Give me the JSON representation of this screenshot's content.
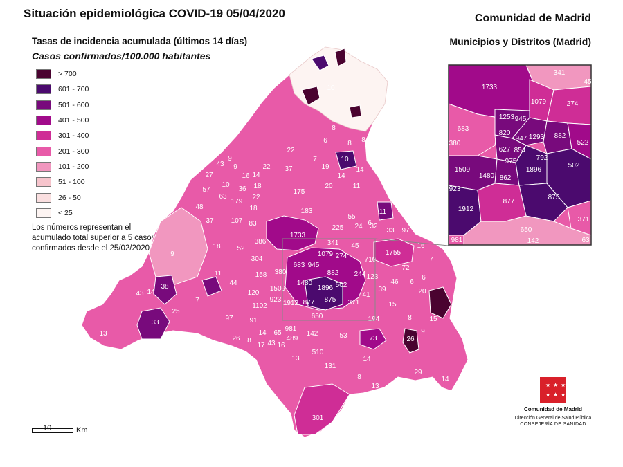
{
  "title": "Situación epidemiológica COVID-19  05/04/2020",
  "subtitle": "Tasas de incidencia acumulada (últimos 14 días)",
  "subtitle2": "Casos confirmados/100.000 habitantes",
  "org": "Comunidad de Madrid",
  "org2": "Municipios y Distritos (Madrid)",
  "legend": [
    {
      "label": "> 700",
      "color": "#4a0330"
    },
    {
      "label": "601 - 700",
      "color": "#4b0a6e"
    },
    {
      "label": "501 - 600",
      "color": "#780a7c"
    },
    {
      "label": "401 - 500",
      "color": "#a10a8a"
    },
    {
      "label": "301 - 400",
      "color": "#cf2d96"
    },
    {
      "label": "201 - 300",
      "color": "#e85aa8"
    },
    {
      "label": "101 - 200",
      "color": "#f197bf"
    },
    {
      "label": "51 - 100",
      "color": "#f6c4cc"
    },
    {
      "label": "26 - 50",
      "color": "#fadfe0"
    },
    {
      "label": "< 25",
      "color": "#fdf4f2"
    }
  ],
  "note": "Los números representan el acumulado total superior a 5 casos confirmados desde el 25/02/2020",
  "scale": {
    "value": "10",
    "unit": "Km"
  },
  "logo": {
    "name": "Comunidad de Madrid",
    "dept": "Dirección General de Salud Pública",
    "ministry": "CONSEJERÍA DE SANIDAD"
  },
  "main_map_labels": [
    {
      "t": "10"
    },
    {
      "t": "8"
    },
    {
      "t": "6"
    },
    {
      "t": "8"
    },
    {
      "t": "8"
    },
    {
      "t": "10"
    },
    {
      "t": "14"
    },
    {
      "t": "43"
    },
    {
      "t": "9"
    },
    {
      "t": "22"
    },
    {
      "t": "37"
    },
    {
      "t": "22"
    },
    {
      "t": "19"
    },
    {
      "t": "7"
    },
    {
      "t": "27"
    },
    {
      "t": "9"
    },
    {
      "t": "16"
    },
    {
      "t": "57"
    },
    {
      "t": "10"
    },
    {
      "t": "36"
    },
    {
      "t": "14"
    },
    {
      "t": "18"
    },
    {
      "t": "175"
    },
    {
      "t": "20"
    },
    {
      "t": "14"
    },
    {
      "t": "11"
    },
    {
      "t": "63"
    },
    {
      "t": "179"
    },
    {
      "t": "22"
    },
    {
      "t": "11"
    },
    {
      "t": "7"
    },
    {
      "t": "48"
    },
    {
      "t": "18"
    },
    {
      "t": "183"
    },
    {
      "t": "6"
    },
    {
      "t": "37"
    },
    {
      "t": "107"
    },
    {
      "t": "83"
    },
    {
      "t": "225"
    },
    {
      "t": "55"
    },
    {
      "t": "24"
    },
    {
      "t": "32"
    },
    {
      "t": "33"
    },
    {
      "t": "97"
    },
    {
      "t": "1733"
    },
    {
      "t": "341"
    },
    {
      "t": "45"
    },
    {
      "t": "1755"
    },
    {
      "t": "16"
    },
    {
      "t": "7"
    },
    {
      "t": "18"
    },
    {
      "t": "386"
    },
    {
      "t": "9"
    },
    {
      "t": "52"
    },
    {
      "t": "304"
    },
    {
      "t": "1079"
    },
    {
      "t": "274"
    },
    {
      "t": "710"
    },
    {
      "t": "72"
    },
    {
      "t": "683"
    },
    {
      "t": "945"
    },
    {
      "t": "882"
    },
    {
      "t": "380"
    },
    {
      "t": "244"
    },
    {
      "t": "123"
    },
    {
      "t": "158"
    },
    {
      "t": "11"
    },
    {
      "t": "6"
    },
    {
      "t": "6"
    },
    {
      "t": "44"
    },
    {
      "t": "1480"
    },
    {
      "t": "1896"
    },
    {
      "t": "502"
    },
    {
      "t": "46"
    },
    {
      "t": "38"
    },
    {
      "t": "1509"
    },
    {
      "t": "39"
    },
    {
      "t": "20"
    },
    {
      "t": "43"
    },
    {
      "t": "14"
    },
    {
      "t": "7"
    },
    {
      "t": "120"
    },
    {
      "t": "41"
    },
    {
      "t": "923"
    },
    {
      "t": "875"
    },
    {
      "t": "371"
    },
    {
      "t": "1102"
    },
    {
      "t": "1912"
    },
    {
      "t": "877"
    },
    {
      "t": "15"
    },
    {
      "t": "25"
    },
    {
      "t": "650"
    },
    {
      "t": "97"
    },
    {
      "t": "91"
    },
    {
      "t": "194"
    },
    {
      "t": "8"
    },
    {
      "t": "15"
    },
    {
      "t": "33"
    },
    {
      "t": "981"
    },
    {
      "t": "9"
    },
    {
      "t": "13"
    },
    {
      "t": "65"
    },
    {
      "t": "142"
    },
    {
      "t": "53"
    },
    {
      "t": "73"
    },
    {
      "t": "26"
    },
    {
      "t": "26"
    },
    {
      "t": "14"
    },
    {
      "t": "489"
    },
    {
      "t": "8"
    },
    {
      "t": "17"
    },
    {
      "t": "43"
    },
    {
      "t": "16"
    },
    {
      "t": "13"
    },
    {
      "t": "510"
    },
    {
      "t": "14"
    },
    {
      "t": "131"
    },
    {
      "t": "29"
    },
    {
      "t": "8"
    },
    {
      "t": "13"
    },
    {
      "t": "14"
    },
    {
      "t": "301"
    }
  ],
  "inset_labels": [
    {
      "t": "341"
    },
    {
      "t": "45"
    },
    {
      "t": "1733"
    },
    {
      "t": "1079"
    },
    {
      "t": "274"
    },
    {
      "t": "1253"
    },
    {
      "t": "945"
    },
    {
      "t": "683"
    },
    {
      "t": "820"
    },
    {
      "t": "947"
    },
    {
      "t": "1293"
    },
    {
      "t": "882"
    },
    {
      "t": "380"
    },
    {
      "t": "522"
    },
    {
      "t": "627"
    },
    {
      "t": "854"
    },
    {
      "t": "975"
    },
    {
      "t": "792"
    },
    {
      "t": "1509"
    },
    {
      "t": "1896"
    },
    {
      "t": "502"
    },
    {
      "t": "1480"
    },
    {
      "t": "862"
    },
    {
      "t": "923"
    },
    {
      "t": "875"
    },
    {
      "t": "1912"
    },
    {
      "t": "877"
    },
    {
      "t": "371"
    },
    {
      "t": "650"
    },
    {
      "t": "981"
    },
    {
      "t": "142"
    },
    {
      "t": "63"
    }
  ]
}
